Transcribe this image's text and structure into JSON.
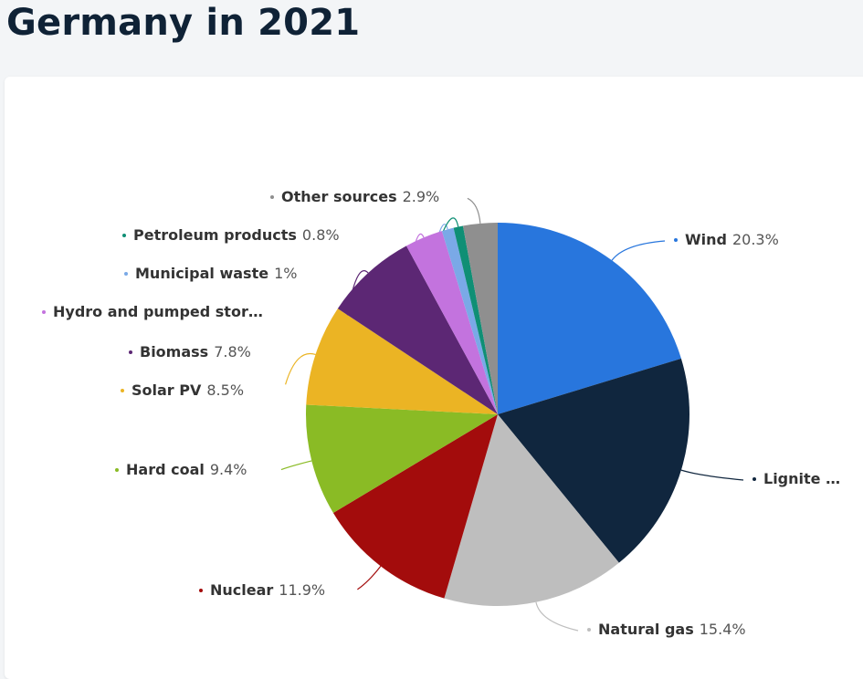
{
  "title": "Germany in 2021",
  "chart_data": {
    "type": "pie",
    "title": "Germany in 2021",
    "slices": [
      {
        "name": "Wind",
        "value": 20.3,
        "value_label": "20.3%",
        "color": "#2876dd"
      },
      {
        "name": "Lignite …",
        "value": 18.8,
        "value_label": "",
        "color": "#10263e"
      },
      {
        "name": "Natural gas",
        "value": 15.4,
        "value_label": "15.4%",
        "color": "#bebebe"
      },
      {
        "name": "Nuclear",
        "value": 11.9,
        "value_label": "11.9%",
        "color": "#a30c0c"
      },
      {
        "name": "Hard coal",
        "value": 9.4,
        "value_label": "9.4%",
        "color": "#8abb25"
      },
      {
        "name": "Solar PV",
        "value": 8.5,
        "value_label": "8.5%",
        "color": "#ebb424"
      },
      {
        "name": "Biomass",
        "value": 7.8,
        "value_label": "7.8%",
        "color": "#5c2774"
      },
      {
        "name": "Hydro and pumped stor…",
        "value": 3.2,
        "value_label": "",
        "color": "#c373de"
      },
      {
        "name": "Municipal waste",
        "value": 1,
        "value_label": "1%",
        "color": "#7aa9e7"
      },
      {
        "name": "Petroleum products",
        "value": 0.8,
        "value_label": "0.8%",
        "color": "#0f8f75"
      },
      {
        "name": "Other sources",
        "value": 2.9,
        "value_label": "2.9%",
        "color": "#8f8f8f"
      }
    ],
    "legend": "none",
    "data_labels": "outside-with-connectors"
  }
}
